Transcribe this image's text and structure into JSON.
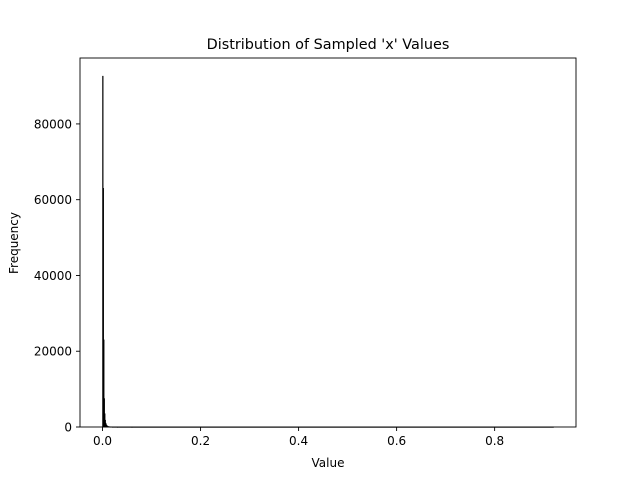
{
  "chart_data": {
    "type": "bar",
    "title": "Distribution of Sampled 'x' Values",
    "xlabel": "Value",
    "ylabel": "Frequency",
    "xlim": [
      -0.046,
      0.966
    ],
    "ylim": [
      0,
      97400
    ],
    "xticks": [
      0.0,
      0.2,
      0.4,
      0.6,
      0.8
    ],
    "xtick_labels": [
      "0.0",
      "0.2",
      "0.4",
      "0.6",
      "0.8"
    ],
    "yticks": [
      0,
      20000,
      40000,
      60000,
      80000
    ],
    "ytick_labels": [
      "0",
      "20000",
      "40000",
      "60000",
      "80000"
    ],
    "grid": false,
    "bins": [
      {
        "x0": 0.0,
        "x1": 0.001,
        "count": 92600
      },
      {
        "x0": 0.001,
        "x1": 0.002,
        "count": 63000
      },
      {
        "x0": 0.002,
        "x1": 0.003,
        "count": 23000
      },
      {
        "x0": 0.003,
        "x1": 0.004,
        "count": 7500
      },
      {
        "x0": 0.004,
        "x1": 0.005,
        "count": 3500
      },
      {
        "x0": 0.005,
        "x1": 0.006,
        "count": 1800
      },
      {
        "x0": 0.006,
        "x1": 0.007,
        "count": 1000
      },
      {
        "x0": 0.007,
        "x1": 0.008,
        "count": 600
      },
      {
        "x0": 0.008,
        "x1": 0.009,
        "count": 400
      },
      {
        "x0": 0.009,
        "x1": 0.01,
        "count": 250
      },
      {
        "x0": 0.01,
        "x1": 0.012,
        "count": 150
      },
      {
        "x0": 0.012,
        "x1": 0.015,
        "count": 80
      },
      {
        "x0": 0.015,
        "x1": 0.02,
        "count": 40
      },
      {
        "x0": 0.02,
        "x1": 0.03,
        "count": 15
      },
      {
        "x0": 0.03,
        "x1": 0.06,
        "count": 5
      },
      {
        "x0": 0.06,
        "x1": 0.92,
        "count": 1
      }
    ],
    "colors": {
      "bar_fill": "#000000",
      "bar_edge": "#000000",
      "axes": "#000000"
    }
  }
}
